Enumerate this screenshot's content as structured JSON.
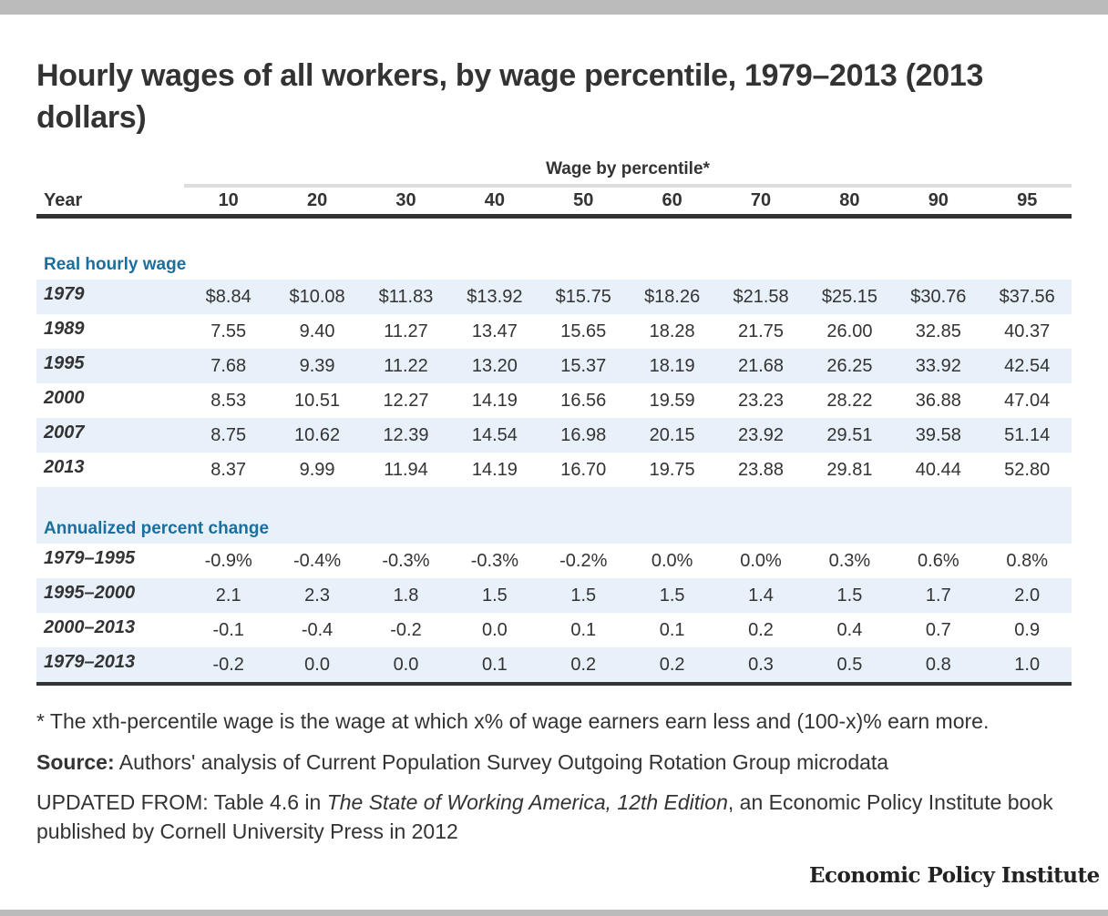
{
  "title": "Hourly wages of all workers, by wage percentile, 1979–2013 (2013 dollars)",
  "chart_data": {
    "type": "table",
    "title": "Hourly wages of all workers, by wage percentile, 1979–2013 (2013 dollars)",
    "group_header": "Wage by percentile*",
    "row_header_label": "Year",
    "columns": [
      "10",
      "20",
      "30",
      "40",
      "50",
      "60",
      "70",
      "80",
      "90",
      "95"
    ],
    "sections": [
      {
        "title": "Real hourly wage",
        "rows": [
          {
            "label": "1979",
            "values": [
              "$8.84",
              "$10.08",
              "$11.83",
              "$13.92",
              "$15.75",
              "$18.26",
              "$21.58",
              "$25.15",
              "$30.76",
              "$37.56"
            ]
          },
          {
            "label": "1989",
            "values": [
              "7.55",
              "9.40",
              "11.27",
              "13.47",
              "15.65",
              "18.28",
              "21.75",
              "26.00",
              "32.85",
              "40.37"
            ]
          },
          {
            "label": "1995",
            "values": [
              "7.68",
              "9.39",
              "11.22",
              "13.20",
              "15.37",
              "18.19",
              "21.68",
              "26.25",
              "33.92",
              "42.54"
            ]
          },
          {
            "label": "2000",
            "values": [
              "8.53",
              "10.51",
              "12.27",
              "14.19",
              "16.56",
              "19.59",
              "23.23",
              "28.22",
              "36.88",
              "47.04"
            ]
          },
          {
            "label": "2007",
            "values": [
              "8.75",
              "10.62",
              "12.39",
              "14.54",
              "16.98",
              "20.15",
              "23.92",
              "29.51",
              "39.58",
              "51.14"
            ]
          },
          {
            "label": "2013",
            "values": [
              "8.37",
              "9.99",
              "11.94",
              "14.19",
              "16.70",
              "19.75",
              "23.88",
              "29.81",
              "40.44",
              "52.80"
            ]
          }
        ]
      },
      {
        "title": "Annualized percent change",
        "rows": [
          {
            "label": "1979–1995",
            "values": [
              "-0.9%",
              "-0.4%",
              "-0.3%",
              "-0.3%",
              "-0.2%",
              "0.0%",
              "0.0%",
              "0.3%",
              "0.6%",
              "0.8%"
            ]
          },
          {
            "label": "1995–2000",
            "values": [
              "2.1",
              "2.3",
              "1.8",
              "1.5",
              "1.5",
              "1.5",
              "1.4",
              "1.5",
              "1.7",
              "2.0"
            ]
          },
          {
            "label": "2000–2013",
            "values": [
              "-0.1",
              "-0.4",
              "-0.2",
              "0.0",
              "0.1",
              "0.1",
              "0.2",
              "0.4",
              "0.7",
              "0.9"
            ]
          },
          {
            "label": "1979–2013",
            "values": [
              "-0.2",
              "0.0",
              "0.0",
              "0.1",
              "0.2",
              "0.2",
              "0.3",
              "0.5",
              "0.8",
              "1.0"
            ]
          }
        ]
      }
    ]
  },
  "notes": {
    "footnote": "* The xth-percentile wage is the wage at which x% of wage earners earn less and (100-x)% earn more.",
    "source_label": "Source:",
    "source_text": " Authors' analysis of Current Population Survey Outgoing Rotation Group microdata",
    "updated_prefix": "UPDATED FROM: Table 4.6 in ",
    "updated_italic": "The State of Working America, 12th Edition",
    "updated_suffix": ", an Economic Policy Institute book published by Cornell University Press in 2012"
  },
  "logo": "Economic Policy Institute",
  "colors": {
    "section_title": "#1b6f9f",
    "row_shade": "#e8f0f9",
    "rule_dark": "#333333",
    "rule_light": "#dddddd",
    "frame_bar": "#bbbbbb"
  }
}
